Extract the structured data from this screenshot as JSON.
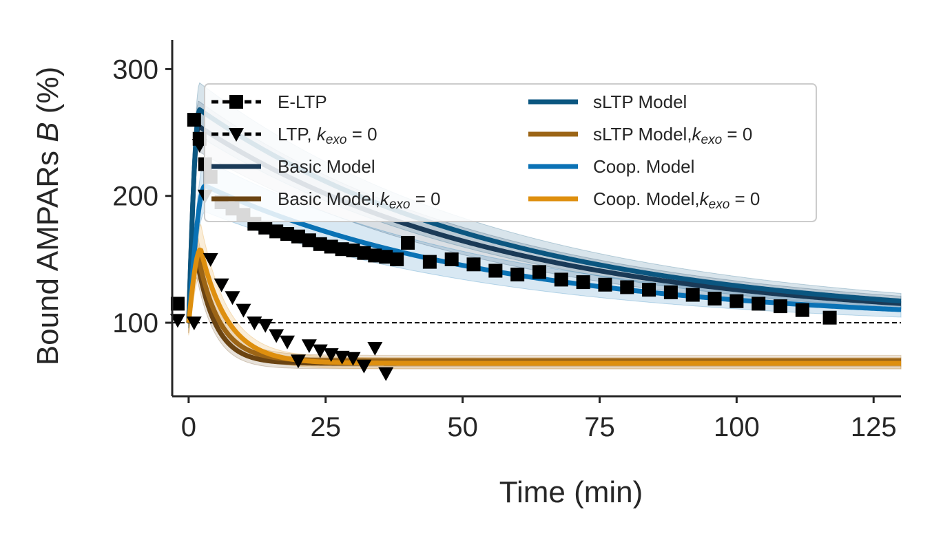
{
  "chart_data": {
    "type": "line",
    "xlabel": "Time (min)",
    "ylabel_prefix": "Bound AMPARs ",
    "ylabel_var": "B",
    "ylabel_suffix": " (%)",
    "xlim": [
      -3,
      130
    ],
    "ylim": [
      42,
      323
    ],
    "xticks": [
      0,
      25,
      50,
      75,
      100,
      125
    ],
    "yticks": [
      100,
      200,
      300
    ],
    "reference_line": {
      "y": 100,
      "style": "dashed"
    },
    "series": [
      {
        "name": "E-LTP",
        "kind": "data",
        "marker": "square",
        "color": "#000000",
        "x": [
          -2,
          1,
          2,
          3,
          4,
          6,
          8,
          10,
          12,
          14,
          16,
          18,
          20,
          22,
          24,
          26,
          28,
          30,
          32,
          34,
          36,
          38,
          40,
          44,
          48,
          52,
          56,
          60,
          64,
          68,
          72,
          76,
          80,
          84,
          88,
          92,
          96,
          100,
          104,
          108,
          112,
          117
        ],
        "y": [
          115,
          260,
          245,
          225,
          215,
          195,
          190,
          185,
          178,
          175,
          172,
          170,
          168,
          165,
          162,
          160,
          158,
          157,
          155,
          153,
          152,
          150,
          163,
          148,
          150,
          146,
          141,
          138,
          140,
          134,
          132,
          130,
          128,
          126,
          124,
          122,
          119,
          117,
          115,
          113,
          110,
          104
        ]
      },
      {
        "name": "LTP, k_exo = 0",
        "kind": "data",
        "marker": "triangle_down",
        "color": "#000000",
        "x": [
          -2,
          1,
          2,
          3,
          4,
          6,
          8,
          10,
          12,
          14,
          16,
          18,
          20,
          22,
          24,
          26,
          28,
          30,
          32,
          34,
          36
        ],
        "y": [
          102,
          100,
          240,
          200,
          150,
          130,
          120,
          110,
          100,
          98,
          90,
          85,
          70,
          82,
          78,
          75,
          73,
          72,
          66,
          80,
          60
        ]
      },
      {
        "name": "Basic Model",
        "kind": "model",
        "color": "#1a3a57",
        "base": 100,
        "peak": 255,
        "tpeak": 1.8,
        "baseline": 100,
        "tau": 55,
        "band": 0.04
      },
      {
        "name": "Basic Model,k_exo = 0",
        "kind": "model",
        "color": "#6b4412",
        "base": 100,
        "peak": 150,
        "tpeak": 1.5,
        "baseline": 68,
        "tau": 3.5,
        "band": 0.05
      },
      {
        "name": "sLTP Model",
        "kind": "model",
        "color": "#0b5680",
        "base": 100,
        "peak": 268,
        "tpeak": 2.0,
        "baseline": 100,
        "tau": 56,
        "band": 0.04
      },
      {
        "name": "sLTP Model,k_exo = 0",
        "kind": "model",
        "color": "#9c6516",
        "base": 100,
        "peak": 155,
        "tpeak": 1.6,
        "baseline": 70,
        "tau": 4.0,
        "band": 0.05
      },
      {
        "name": "Coop. Model",
        "kind": "model",
        "color": "#0a72b5",
        "base": 100,
        "peak": 208,
        "tpeak": 3.0,
        "baseline": 100,
        "tau": 54,
        "band": 0.06
      },
      {
        "name": "Coop. Model,k_exo = 0",
        "kind": "model",
        "color": "#de8f0e",
        "base": 100,
        "peak": 158,
        "tpeak": 2.2,
        "baseline": 68,
        "tau": 5.0,
        "band": 0.07
      }
    ],
    "legend": {
      "placement": "upper-center",
      "columns": 2,
      "entries": [
        {
          "label": "E-LTP",
          "sub": ""
        },
        {
          "label": "LTP, ",
          "sub": "exo",
          "suffix": " = 0"
        },
        {
          "label": "Basic Model",
          "sub": ""
        },
        {
          "label": "Basic Model,",
          "sub": "exo",
          "suffix": " = 0"
        },
        {
          "label": "sLTP Model",
          "sub": ""
        },
        {
          "label": "sLTP Model,",
          "sub": "exo",
          "suffix": " = 0"
        },
        {
          "label": "Coop. Model",
          "sub": ""
        },
        {
          "label": "Coop. Model,",
          "sub": "exo",
          "suffix": " = 0"
        }
      ]
    }
  }
}
